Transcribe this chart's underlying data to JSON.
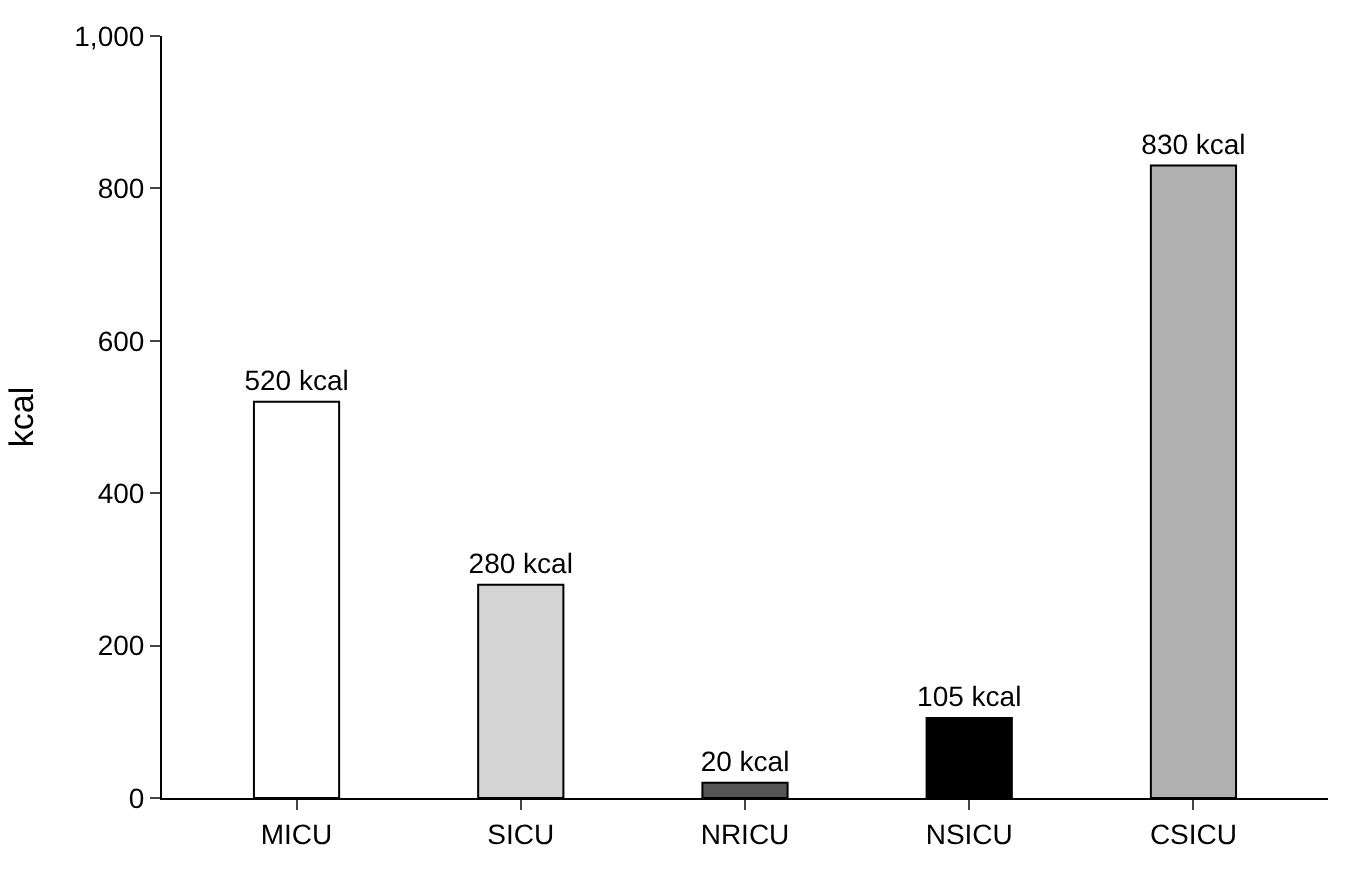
{
  "chart_data": {
    "type": "bar",
    "ylabel": "kcal",
    "categories": [
      "MICU",
      "SICU",
      "NRICU",
      "NSICU",
      "CSICU"
    ],
    "values": [
      520,
      280,
      20,
      105,
      830
    ],
    "colors": [
      "#ffffff",
      "#d4d4d4",
      "#555555",
      "#000000",
      "#b0b0b0"
    ],
    "value_labels": [
      "520 kcal",
      "280 kcal",
      "20 kcal",
      "105 kcal",
      "830 kcal"
    ],
    "ylim": [
      0,
      1000
    ],
    "yticks": [
      0,
      200,
      400,
      600,
      800,
      {
        "value": 1000,
        "label": "1,000"
      }
    ],
    "legend": false
  }
}
